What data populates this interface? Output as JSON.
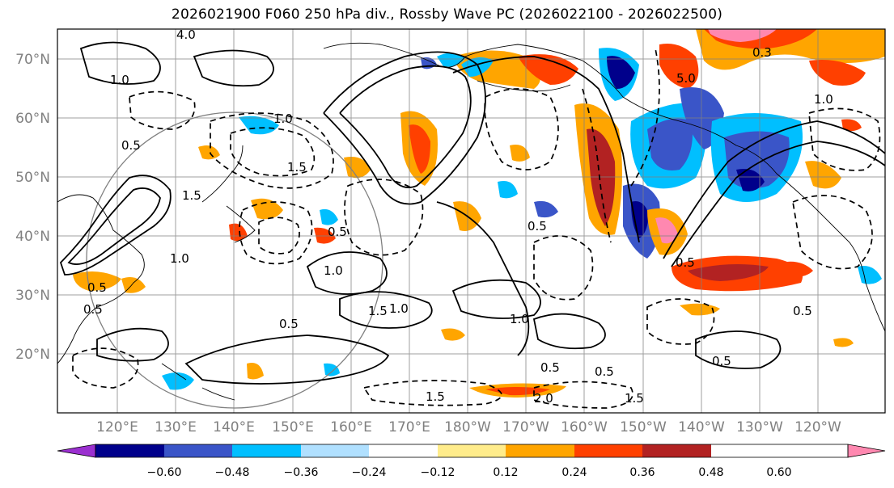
{
  "title": "2026021900 F060 250 hPa div., Rossby Wave PC (2026022100 - 2026022500)",
  "map": {
    "lat_labels": [
      "70°N",
      "60°N",
      "50°N",
      "40°N",
      "30°N",
      "20°N"
    ],
    "lon_labels": [
      "120°E",
      "130°E",
      "140°E",
      "150°E",
      "160°E",
      "170°E",
      "180°W",
      "170°W",
      "160°W",
      "150°W",
      "140°W",
      "130°W",
      "120°W"
    ],
    "contour_labels": [
      "4.0",
      "1.0",
      "1.0",
      "0.5",
      "0.5",
      "1.0",
      "1.5",
      "0.5",
      "1.0",
      "1.5",
      "0.5",
      "0.5",
      "1.5",
      "1.0",
      "0.5",
      "0.5",
      "0.5",
      "1.0",
      "2.0",
      "1.5",
      "0.5",
      "0.5",
      "0.5",
      "1.5",
      "1.0",
      "5.0",
      "0.3"
    ]
  },
  "colorbar": {
    "ticks": [
      "−0.60",
      "−0.48",
      "−0.36",
      "−0.24",
      "−0.12",
      "0.12",
      "0.24",
      "0.36",
      "0.48",
      "0.60"
    ],
    "colors": [
      "#9b30d0",
      "#00008b",
      "#3a55c8",
      "#00bfff",
      "#b0e0ff",
      "#ffffff",
      "#ffec8b",
      "#ffa500",
      "#ff4000",
      "#b22222",
      "#ff88b0"
    ]
  }
}
